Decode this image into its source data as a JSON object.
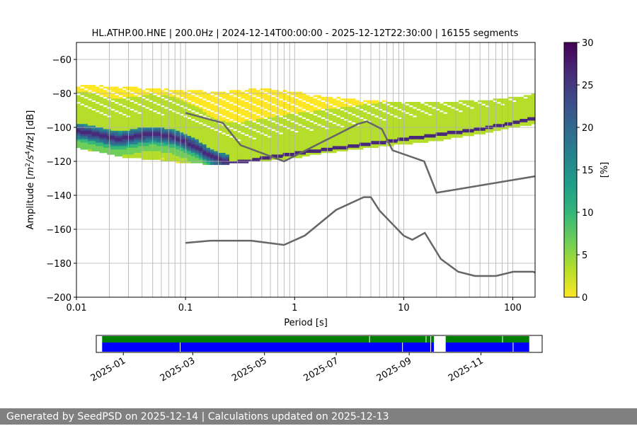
{
  "chart_data": {
    "type": "heatmap",
    "title": "HL.ATHP.00.HNE | 200.0Hz | 2024-12-14T00:00:00 - 2025-12-12T22:30:00 | 16155 segments",
    "xlabel": "Period [s]",
    "ylabel": "Amplitude [m²/s⁴/Hz] [dB]",
    "xscale": "log",
    "xlim": [
      0.01,
      160
    ],
    "ylim": [
      -200,
      -50
    ],
    "xticks": [
      {
        "value": 0.01,
        "label": "0.01"
      },
      {
        "value": 0.1,
        "label": "0.1"
      },
      {
        "value": 1,
        "label": "1"
      },
      {
        "value": 10,
        "label": "10"
      },
      {
        "value": 100,
        "label": "100"
      }
    ],
    "yticks": [
      -200,
      -180,
      -160,
      -140,
      -120,
      -100,
      -80,
      -60
    ],
    "ytick_labels": [
      "−200",
      "−180",
      "−160",
      "−140",
      "−120",
      "−100",
      "−80",
      "−60"
    ],
    "grid": true,
    "colorbar": {
      "label": "[%]",
      "min": 0,
      "max": 30,
      "ticks": [
        0,
        5,
        10,
        15,
        20,
        25,
        30
      ],
      "colormap": "viridis_r"
    },
    "psd_mode": {
      "period": [
        0.01,
        0.015,
        0.02,
        0.025,
        0.03,
        0.04,
        0.05,
        0.06,
        0.08,
        0.1,
        0.13,
        0.16,
        0.2,
        0.25,
        0.3,
        0.4,
        0.5,
        0.6,
        0.8,
        1,
        1.5,
        2,
        3,
        5,
        8,
        10,
        20,
        50,
        100,
        160
      ],
      "db": [
        -102,
        -104,
        -106,
        -107,
        -106,
        -104.5,
        -104,
        -104.5,
        -106,
        -108.5,
        -112,
        -116,
        -119,
        -120.5,
        -120.5,
        -119.5,
        -118.5,
        -117.5,
        -116.5,
        -115.5,
        -114,
        -113,
        -111.5,
        -109.5,
        -108,
        -107,
        -104.5,
        -101,
        -97.5,
        -94.5
      ]
    },
    "psd_spread": {
      "period": [
        0.01,
        0.03,
        0.05,
        0.1,
        0.2,
        0.3,
        0.5,
        1,
        2,
        5,
        10,
        20,
        50,
        100,
        160
      ],
      "upper_db": [
        -75,
        -76,
        -77,
        -78,
        -79,
        -78,
        -77,
        -79,
        -82,
        -84,
        -85,
        -85,
        -84,
        -82,
        -80
      ],
      "lower_db": [
        -112,
        -118,
        -119,
        -121,
        -122,
        -121,
        -120,
        -118,
        -115,
        -112,
        -110,
        -108,
        -104,
        -100,
        -98
      ]
    },
    "nhnm": {
      "period": [
        0.1,
        0.22,
        0.32,
        0.8,
        3.8,
        4.6,
        6.3,
        7.9,
        15.4,
        20,
        160
      ],
      "db": [
        -91.5,
        -97.4,
        -110.5,
        -120,
        -98,
        -96.5,
        -101,
        -113.5,
        -120,
        -138.5,
        -128.8
      ]
    },
    "nlnm": {
      "period": [
        0.1,
        0.17,
        0.4,
        0.8,
        1.24,
        2.4,
        4.3,
        5,
        6,
        10,
        12,
        15.6,
        21.9,
        31.6,
        45,
        70,
        101,
        154,
        160
      ],
      "db": [
        -168,
        -166.7,
        -166.7,
        -169.2,
        -163.7,
        -148.6,
        -141.1,
        -141.1,
        -149,
        -163.8,
        -166.2,
        -162.1,
        -177.5,
        -185,
        -187.5,
        -187.5,
        -185,
        -185,
        -185.5
      ]
    },
    "timeline": {
      "start": "2024-12-14",
      "end": "2025-12-12",
      "tick_labels": [
        "2025-01",
        "2025-03",
        "2025-05",
        "2025-07",
        "2025-09",
        "2025-11"
      ],
      "tick_dates": [
        "2025-01-01",
        "2025-03-01",
        "2025-05-01",
        "2025-07-01",
        "2025-09-01",
        "2025-11-01"
      ],
      "axis_start": "2024-12-09",
      "axis_end": "2025-12-23",
      "green_segments": [
        [
          "2024-12-14",
          "2025-09-22"
        ],
        [
          "2025-10-02",
          "2025-12-12"
        ]
      ],
      "blue_segments": [
        [
          "2024-12-14",
          "2025-09-22"
        ],
        [
          "2025-10-02",
          "2025-12-12"
        ]
      ],
      "blue_gaps": [
        "2025-02-18",
        "2025-08-26",
        "2025-09-19",
        "2025-11-28"
      ],
      "green_gaps": [
        "2025-07-29",
        "2025-09-15",
        "2025-09-19",
        "2025-11-19"
      ]
    }
  },
  "footer": {
    "text": "Generated by SeedPSD on 2025-12-14 | Calculations updated on 2025-12-13"
  },
  "colors": {
    "nm_line": "#666666",
    "grid": "#b0b0b0",
    "timeline_green": "#008000",
    "timeline_blue": "#0000ff",
    "footer_bg": "#808080"
  }
}
